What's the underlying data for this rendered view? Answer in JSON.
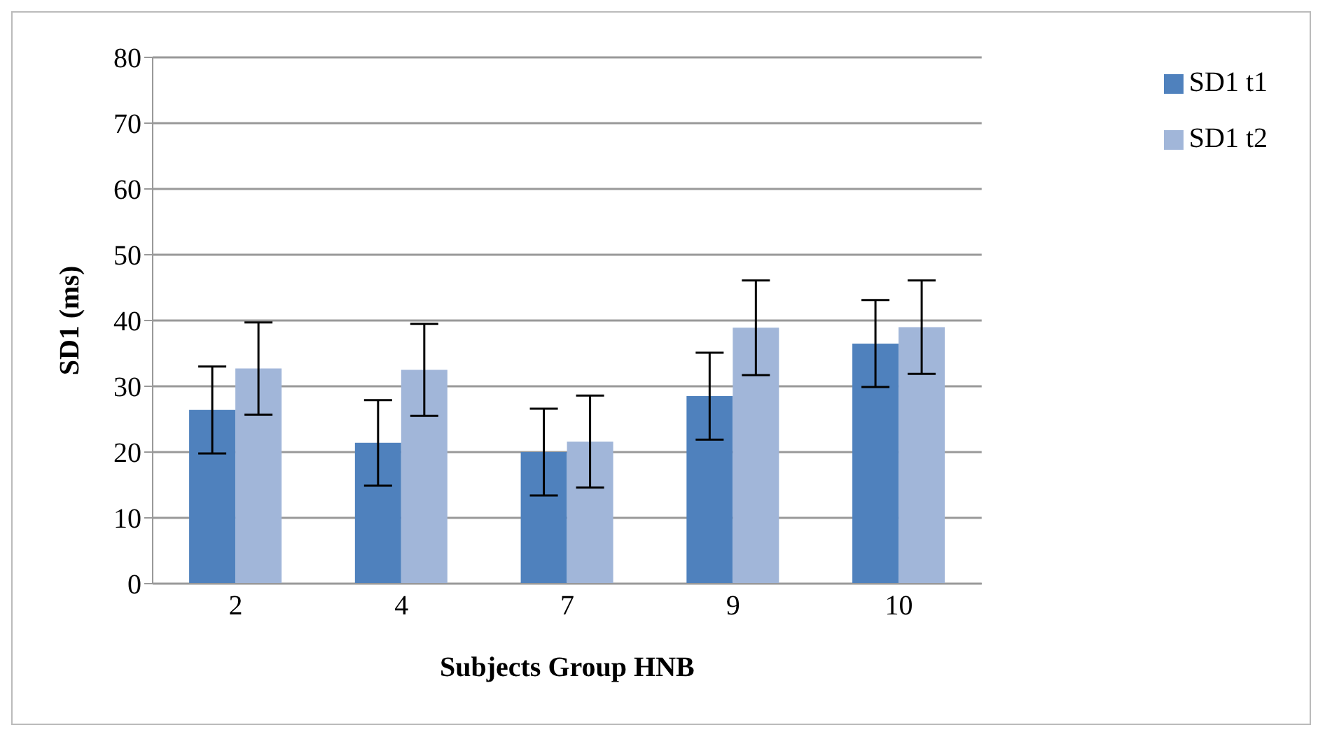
{
  "chart_data": {
    "type": "bar",
    "xlabel": "Subjects Group HNB",
    "ylabel": "SD1 (ms)",
    "categories": [
      "2",
      "4",
      "7",
      "9",
      "10"
    ],
    "series": [
      {
        "name": "SD1 t1",
        "color": "#4f81bd",
        "values": [
          26.4,
          21.4,
          20,
          28.5,
          36.5
        ],
        "errors": [
          6.6,
          6.5,
          6.6,
          6.6,
          6.6
        ]
      },
      {
        "name": "SD1 t2",
        "color": "#a1b6d9",
        "values": [
          32.7,
          32.5,
          21.6,
          38.9,
          39
        ],
        "errors": [
          7,
          7,
          7,
          7.2,
          7.1
        ]
      }
    ],
    "ylim": [
      0,
      80
    ],
    "yticks": [
      0,
      10,
      20,
      30,
      40,
      50,
      60,
      70,
      80
    ],
    "grid": "y",
    "legend": "top right"
  }
}
